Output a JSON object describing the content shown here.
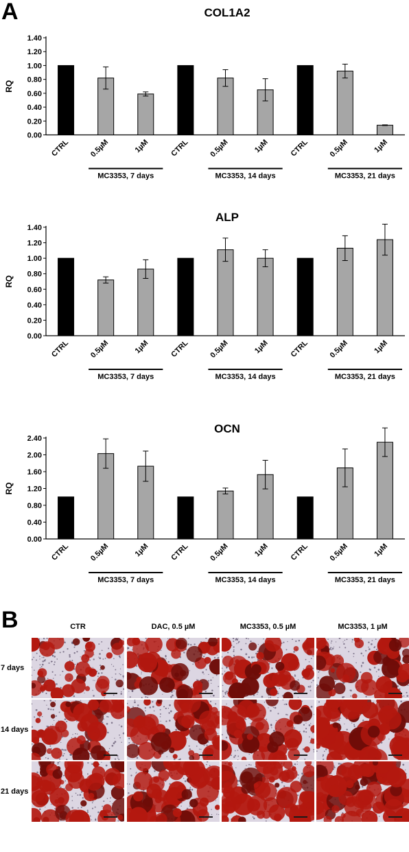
{
  "figure": {
    "panel_a_letter": "A",
    "panel_b_letter": "B"
  },
  "chart_data": [
    {
      "type": "bar",
      "title": "COL1A2",
      "ylabel": "RQ",
      "ylim": [
        0,
        1.4
      ],
      "yticks": [
        "0.00",
        "0.20",
        "0.40",
        "0.60",
        "0.80",
        "1.00",
        "1.20",
        "1.40"
      ],
      "categories": [
        "CTRL",
        "0.5µM",
        "1µM",
        "CTRL",
        "0.5µM",
        "1µM",
        "CTRL",
        "0.5µM",
        "1µM"
      ],
      "values": [
        1.0,
        0.82,
        0.59,
        1.0,
        0.82,
        0.65,
        1.0,
        0.92,
        0.14
      ],
      "errors": [
        0,
        0.16,
        0.03,
        0,
        0.12,
        0.16,
        0,
        0.1,
        0.005
      ],
      "bar_colors": [
        "#000000",
        "#a6a6a6",
        "#a6a6a6",
        "#000000",
        "#a6a6a6",
        "#a6a6a6",
        "#000000",
        "#a6a6a6",
        "#a6a6a6"
      ],
      "groups": [
        "MC3353, 7 days",
        "MC3353, 14 days",
        "MC3353, 21 days"
      ],
      "grid": false,
      "legend": "none"
    },
    {
      "type": "bar",
      "title": "ALP",
      "ylabel": "RQ",
      "ylim": [
        0,
        1.4
      ],
      "yticks": [
        "0.00",
        "0.20",
        "0.40",
        "0.60",
        "0.80",
        "1.00",
        "1.20",
        "1.40"
      ],
      "categories": [
        "CTRL",
        "0.5µM",
        "1µM",
        "CTRL",
        "0.5µM",
        "1µM",
        "CTRL",
        "0.5µM",
        "1µM"
      ],
      "values": [
        1.0,
        0.72,
        0.86,
        1.0,
        1.11,
        1.0,
        1.0,
        1.13,
        1.24
      ],
      "errors": [
        0,
        0.04,
        0.12,
        0,
        0.15,
        0.11,
        0,
        0.16,
        0.2
      ],
      "bar_colors": [
        "#000000",
        "#a6a6a6",
        "#a6a6a6",
        "#000000",
        "#a6a6a6",
        "#a6a6a6",
        "#000000",
        "#a6a6a6",
        "#a6a6a6"
      ],
      "groups": [
        "MC3353, 7 days",
        "MC3353, 14 days",
        "MC3353, 21 days"
      ],
      "grid": false,
      "legend": "none"
    },
    {
      "type": "bar",
      "title": "OCN",
      "ylabel": "RQ",
      "ylim": [
        0,
        2.4
      ],
      "yticks": [
        "0.00",
        "0.40",
        "0.80",
        "1.20",
        "1.60",
        "2.00",
        "2.40"
      ],
      "categories": [
        "CTRL",
        "0.5µM",
        "1µM",
        "CTRL",
        "0.5µM",
        "1µM",
        "CTRL",
        "0.5µM",
        "1µM"
      ],
      "values": [
        1.0,
        2.03,
        1.73,
        1.0,
        1.14,
        1.53,
        1.0,
        1.69,
        2.3
      ],
      "errors": [
        0,
        0.35,
        0.36,
        0,
        0.07,
        0.34,
        0,
        0.45,
        0.34
      ],
      "bar_colors": [
        "#000000",
        "#a6a6a6",
        "#a6a6a6",
        "#000000",
        "#a6a6a6",
        "#a6a6a6",
        "#000000",
        "#a6a6a6",
        "#a6a6a6"
      ],
      "groups": [
        "MC3353, 7 days",
        "MC3353, 14 days",
        "MC3353, 21 days"
      ],
      "grid": false,
      "legend": "none"
    }
  ],
  "panel_b": {
    "columns": [
      "CTR",
      "DAC, 0.5 µM",
      "MC3353, 0.5 µM",
      "MC3353, 1 µM"
    ],
    "rows": [
      "7 days",
      "14 days",
      "21 days"
    ],
    "stain_colors": {
      "background": "#dcd6e2",
      "stain": "#b3180f",
      "dark_stain": "#6e0c08",
      "dots": "#3a2e4a"
    },
    "staining_density": [
      [
        0.25,
        0.45,
        0.45,
        0.45
      ],
      [
        0.45,
        0.55,
        0.5,
        0.7
      ],
      [
        0.55,
        0.65,
        0.7,
        0.8
      ]
    ]
  }
}
